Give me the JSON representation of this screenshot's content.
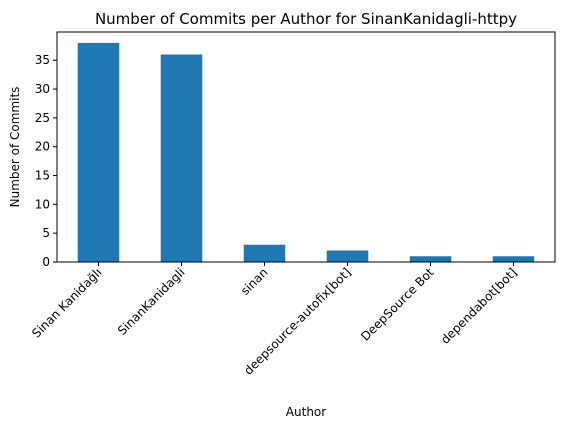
{
  "chart_data": {
    "type": "bar",
    "title": "Number of Commits per Author for SinanKanidagli-httpy",
    "xlabel": "Author",
    "ylabel": "Number of Commits",
    "categories": [
      "Sinan Kanidağlı",
      "SinanKanidagli",
      "sinan",
      "deepsource-autofix[bot]",
      "DeepSource Bot",
      "dependabot[bot]"
    ],
    "values": [
      38,
      36,
      3,
      2,
      1,
      1
    ],
    "ylim": [
      0,
      39.9
    ],
    "yticks": [
      0,
      5,
      10,
      15,
      20,
      25,
      30,
      35
    ],
    "bar_color": "#1f77b4",
    "grid": false,
    "legend": "none"
  }
}
